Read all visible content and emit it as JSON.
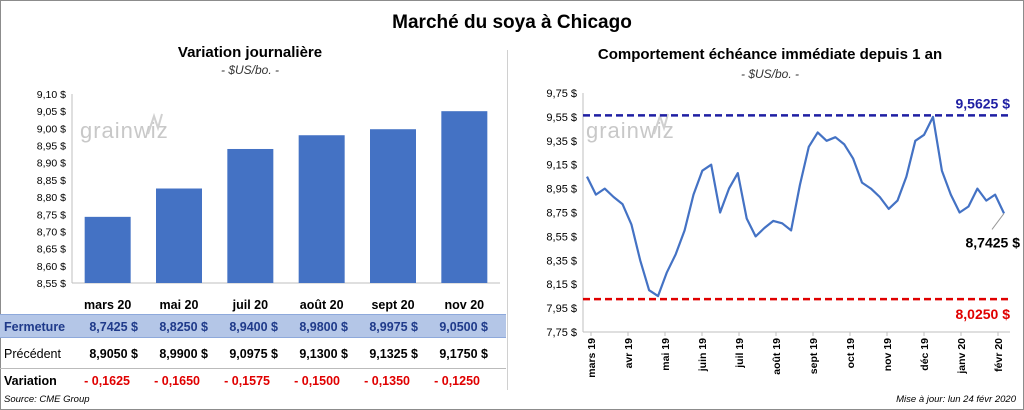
{
  "title": "Marché du soya à Chicago",
  "left": {
    "title": "Variation journalière",
    "unit": "- $US/bo. -"
  },
  "right": {
    "title": "Comportement  échéance immédiate depuis 1 an",
    "unit": "- $US/bo. -"
  },
  "watermark": "grainwiz",
  "colors": {
    "bar": "#4472c4",
    "line": "#4472c4",
    "max_line": "#1f1fa3",
    "min_line": "#e00000",
    "row_highlight": "#b4c6e7",
    "negative": "#e00000"
  },
  "table": {
    "close_label": "Fermeture",
    "prev_label": "Précédent",
    "var_label": "Variation",
    "close": [
      "8,7425  $",
      "8,8250  $",
      "8,9400  $",
      "8,9800  $",
      "8,9975  $",
      "9,0500  $"
    ],
    "prev": [
      "8,9050  $",
      "8,9900  $",
      "9,0975  $",
      "9,1300  $",
      "9,1325  $",
      "9,1750  $"
    ],
    "var": [
      "- 0,1625",
      "- 0,1650",
      "- 0,1575",
      "- 0,1500",
      "- 0,1350",
      "- 0,1250"
    ]
  },
  "footer": {
    "source": "Source: CME Group",
    "updated": "Mise à jour: lun 24 févr 2020"
  },
  "chart_data": [
    {
      "type": "bar",
      "title": "Variation journalière",
      "subtitle": "- $US/bo. -",
      "categories": [
        "mars 20",
        "mai 20",
        "juil 20",
        "août 20",
        "sept 20",
        "nov 20"
      ],
      "values": [
        8.7425,
        8.825,
        8.94,
        8.98,
        8.9975,
        9.05
      ],
      "ylim": [
        8.55,
        9.1
      ],
      "yticks": [
        "8,55 $",
        "8,60 $",
        "8,65 $",
        "8,70 $",
        "8,75 $",
        "8,80 $",
        "8,85 $",
        "8,90 $",
        "8,95 $",
        "9,00 $",
        "9,05 $",
        "9,10 $"
      ],
      "grid": false
    },
    {
      "type": "line",
      "title": "Comportement  échéance immédiate depuis 1 an",
      "subtitle": "- $US/bo. -",
      "ylim": [
        7.75,
        9.75
      ],
      "yticks": [
        "7,75 $",
        "7,95 $",
        "8,15 $",
        "8,35 $",
        "8,55 $",
        "8,75 $",
        "8,95 $",
        "9,15 $",
        "9,35 $",
        "9,55 $",
        "9,75 $"
      ],
      "xticks": [
        "mars 19",
        "avr 19",
        "mai 19",
        "juin 19",
        "juil 19",
        "août 19",
        "sept 19",
        "oct 19",
        "nov 19",
        "déc 19",
        "janv 20",
        "févr 20"
      ],
      "max": {
        "value": 9.5625,
        "label": "9,5625  $"
      },
      "min": {
        "value": 8.025,
        "label": "8,0250  $"
      },
      "last": {
        "value": 8.7425,
        "label": "8,7425 $"
      },
      "x": [
        "mars 19",
        "mars 19",
        "mars 19",
        "mars 19",
        "avr 19",
        "avr 19",
        "avr 19",
        "avr 19",
        "mai 19",
        "mai 19",
        "mai 19",
        "mai 19",
        "juin 19",
        "juin 19",
        "juin 19",
        "juin 19",
        "juil 19",
        "juil 19",
        "juil 19",
        "juil 19",
        "août 19",
        "août 19",
        "août 19",
        "août 19",
        "sept 19",
        "sept 19",
        "sept 19",
        "sept 19",
        "oct 19",
        "oct 19",
        "oct 19",
        "oct 19",
        "nov 19",
        "nov 19",
        "nov 19",
        "nov 19",
        "déc 19",
        "déc 19",
        "déc 19",
        "déc 19",
        "janv 20",
        "janv 20",
        "janv 20",
        "janv 20",
        "févr 20",
        "févr 20",
        "févr 20",
        "févr 20"
      ],
      "y": [
        9.05,
        8.9,
        8.95,
        8.88,
        8.82,
        8.65,
        8.35,
        8.1,
        8.05,
        8.25,
        8.4,
        8.6,
        8.9,
        9.1,
        9.15,
        8.75,
        8.95,
        9.08,
        8.7,
        8.55,
        8.62,
        8.68,
        8.66,
        8.6,
        8.98,
        9.3,
        9.42,
        9.35,
        9.38,
        9.32,
        9.2,
        9.0,
        8.95,
        8.88,
        8.78,
        8.85,
        9.05,
        9.35,
        9.4,
        9.55,
        9.1,
        8.9,
        8.75,
        8.8,
        8.95,
        8.85,
        8.9,
        8.7425
      ]
    }
  ]
}
